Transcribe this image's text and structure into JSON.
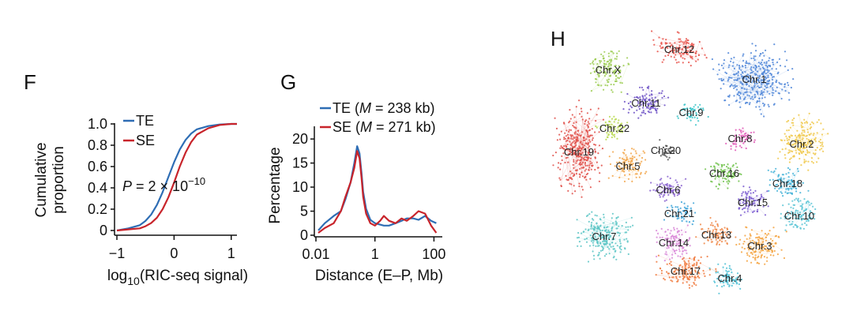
{
  "chart_data": [
    {
      "panel": "F",
      "type": "line",
      "xlabel_main": "log",
      "xlabel_sub": "10",
      "xlabel_rest": "(RIC-seq signal)",
      "ylabel_line1": "Cumulative",
      "ylabel_line2": "proportion",
      "xlim": [
        -1.0,
        1.1
      ],
      "ylim": [
        0,
        1.0
      ],
      "xticks": [
        -1,
        0,
        1
      ],
      "xtick_labels": [
        "−1",
        "0",
        "1"
      ],
      "yticks": [
        0,
        0.2,
        0.4,
        0.6,
        0.8,
        1.0
      ],
      "ytick_labels": [
        "0",
        "0.2",
        "0.4",
        "0.6",
        "0.8",
        "1.0"
      ],
      "annotation": {
        "text_main": "P",
        "text_mid": " = 2 × 10",
        "text_exp": "−10"
      },
      "series": [
        {
          "name": "TE",
          "color": "#2e6db4",
          "x": [
            -1.0,
            -0.8,
            -0.6,
            -0.5,
            -0.4,
            -0.3,
            -0.2,
            -0.1,
            0.0,
            0.1,
            0.2,
            0.3,
            0.4,
            0.6,
            0.8,
            1.0,
            1.1
          ],
          "y": [
            0.0,
            0.02,
            0.05,
            0.09,
            0.15,
            0.24,
            0.36,
            0.5,
            0.64,
            0.76,
            0.85,
            0.91,
            0.95,
            0.98,
            0.995,
            1.0,
            1.0
          ]
        },
        {
          "name": "SE",
          "color": "#c8242b",
          "x": [
            -1.0,
            -0.8,
            -0.6,
            -0.5,
            -0.4,
            -0.3,
            -0.2,
            -0.1,
            0.0,
            0.1,
            0.2,
            0.3,
            0.4,
            0.6,
            0.8,
            1.0,
            1.1
          ],
          "y": [
            0.0,
            0.01,
            0.02,
            0.04,
            0.07,
            0.12,
            0.2,
            0.31,
            0.45,
            0.6,
            0.73,
            0.83,
            0.9,
            0.96,
            0.99,
            1.0,
            1.0
          ]
        }
      ]
    },
    {
      "panel": "G",
      "type": "line",
      "xlabel": "Distance (E–P, Mb)",
      "ylabel": "Percentage",
      "xscale": "log",
      "xlim": [
        0.01,
        150
      ],
      "ylim": [
        0,
        21
      ],
      "xticks": [
        0.01,
        1,
        100
      ],
      "xtick_labels": [
        "0.01",
        "1",
        "100"
      ],
      "yticks": [
        0,
        5,
        10,
        15,
        20
      ],
      "ytick_labels": [
        "0",
        "5",
        "10",
        "15",
        "20"
      ],
      "series": [
        {
          "name_pre": "TE (",
          "name_var": "M",
          "name_post": " = 238 kb)",
          "color": "#2e6db4",
          "x": [
            0.012,
            0.02,
            0.04,
            0.07,
            0.1,
            0.15,
            0.2,
            0.25,
            0.3,
            0.35,
            0.4,
            0.5,
            0.7,
            1.0,
            1.5,
            2,
            3,
            5,
            8,
            12,
            20,
            30,
            50,
            80,
            120
          ],
          "y": [
            1.0,
            2.5,
            4.0,
            5.0,
            7.5,
            11.0,
            15.0,
            18.5,
            17.0,
            13.0,
            9.0,
            5.5,
            3.2,
            2.5,
            2.2,
            2.0,
            2.0,
            2.5,
            3.0,
            3.5,
            3.5,
            3.2,
            4.0,
            3.0,
            2.5
          ]
        },
        {
          "name_pre": "SE (",
          "name_var": "M",
          "name_post": " = 271 kb)",
          "color": "#c8242b",
          "x": [
            0.012,
            0.02,
            0.04,
            0.07,
            0.1,
            0.15,
            0.2,
            0.25,
            0.3,
            0.35,
            0.4,
            0.5,
            0.7,
            1.0,
            1.5,
            2,
            3,
            5,
            8,
            12,
            20,
            30,
            50,
            80,
            120
          ],
          "y": [
            0.5,
            1.5,
            2.5,
            5.0,
            8.0,
            11.0,
            14.0,
            17.5,
            16.0,
            12.0,
            8.0,
            4.5,
            2.5,
            2.0,
            3.0,
            4.0,
            3.0,
            2.5,
            3.5,
            3.0,
            4.0,
            5.0,
            4.5,
            2.0,
            0.5
          ]
        }
      ]
    },
    {
      "panel": "H",
      "type": "network",
      "clusters": [
        {
          "label": "Chr.12",
          "color": "#e8524a"
        },
        {
          "label": "Chr.X",
          "color": "#9ccc52"
        },
        {
          "label": "Chr.1",
          "color": "#4f86d8"
        },
        {
          "label": "Chr.11",
          "color": "#6b4fc4"
        },
        {
          "label": "Chr.9",
          "color": "#38c3c8"
        },
        {
          "label": "Chr.22",
          "color": "#b6d84a"
        },
        {
          "label": "Chr.8",
          "color": "#e05bb7"
        },
        {
          "label": "Chr.19",
          "color": "#e0504a"
        },
        {
          "label": "Chr.20",
          "color": "#555555"
        },
        {
          "label": "Chr.2",
          "color": "#f0c84a"
        },
        {
          "label": "Chr.5",
          "color": "#f2a64a"
        },
        {
          "label": "Chr.16",
          "color": "#6ec24a"
        },
        {
          "label": "Chr.6",
          "color": "#8a63cf"
        },
        {
          "label": "Chr.18",
          "color": "#44b3d8"
        },
        {
          "label": "Chr.15",
          "color": "#7a5ad0"
        },
        {
          "label": "Chr.21",
          "color": "#3da3d8"
        },
        {
          "label": "Chr.10",
          "color": "#5cc6d6"
        },
        {
          "label": "Chr.7",
          "color": "#5cc6c6"
        },
        {
          "label": "Chr.14",
          "color": "#d98ad8"
        },
        {
          "label": "Chr.13",
          "color": "#f08a4a"
        },
        {
          "label": "Chr.3",
          "color": "#f5a340"
        },
        {
          "label": "Chr.17",
          "color": "#f07a3e"
        },
        {
          "label": "Chr.4",
          "color": "#4fc1d6"
        }
      ]
    }
  ]
}
